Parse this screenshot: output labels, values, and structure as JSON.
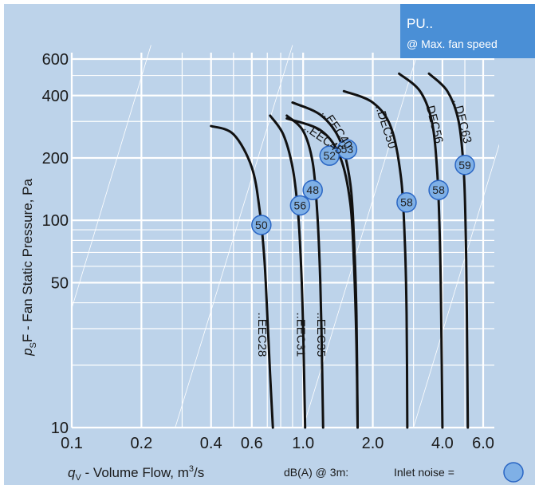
{
  "colors": {
    "background": "#bdd3ea",
    "grid": "#ffffff",
    "curve": "#111111",
    "badge_fill": "#7fb0e6",
    "badge_stroke": "#2a66c4",
    "box_fill": "#4a8fd6",
    "text": "#1a1a1a"
  },
  "info_box": {
    "title": "PU..",
    "subtitle": "@ Max. fan speed"
  },
  "chart_data": {
    "type": "line",
    "x_scale": "log",
    "y_scale": "log",
    "xlim": [
      0.1,
      6.0
    ],
    "ylim": [
      10,
      600
    ],
    "x_ticks": [
      0.1,
      0.2,
      0.4,
      0.6,
      1.0,
      2.0,
      4.0,
      6.0
    ],
    "x_tick_labels": [
      "0.1",
      "0.2",
      "0.4",
      "0.6",
      "1.0",
      "2.0",
      "4.0",
      "6.0"
    ],
    "y_ticks": [
      10,
      50,
      100,
      200,
      400,
      600
    ],
    "y_tick_labels": [
      "10",
      "50",
      "100",
      "200",
      "400",
      "600"
    ],
    "xlabel": {
      "main": "q",
      "sub": "V",
      "rest": " - Volume Flow, m",
      "sup": "3",
      "end": "/s"
    },
    "ylabel": {
      "main": "p",
      "sub": "S",
      "rest": "F - Fan Static Pressure, Pa"
    },
    "series": [
      {
        "name": "..EEC28",
        "points": [
          [
            0.4,
            285
          ],
          [
            0.5,
            260
          ],
          [
            0.6,
            180
          ],
          [
            0.65,
            110
          ],
          [
            0.68,
            65
          ],
          [
            0.7,
            35
          ],
          [
            0.72,
            18
          ],
          [
            0.74,
            10
          ]
        ]
      },
      {
        "name": "..EEC31",
        "points": [
          [
            0.72,
            320
          ],
          [
            0.82,
            260
          ],
          [
            0.9,
            180
          ],
          [
            0.95,
            110
          ],
          [
            0.98,
            60
          ],
          [
            1.0,
            30
          ],
          [
            1.02,
            10
          ]
        ]
      },
      {
        "name": "..EEC35",
        "points": [
          [
            0.85,
            320
          ],
          [
            1.0,
            270
          ],
          [
            1.1,
            190
          ],
          [
            1.15,
            110
          ],
          [
            1.18,
            60
          ],
          [
            1.2,
            30
          ],
          [
            1.22,
            10
          ]
        ]
      },
      {
        "name": "..EEC40",
        "points": [
          [
            0.9,
            370
          ],
          [
            1.2,
            320
          ],
          [
            1.45,
            240
          ],
          [
            1.6,
            150
          ],
          [
            1.66,
            80
          ],
          [
            1.7,
            35
          ],
          [
            1.72,
            10
          ]
        ]
      },
      {
        "name": "..EEC45",
        "points": [
          [
            0.85,
            310
          ],
          [
            1.2,
            270
          ],
          [
            1.45,
            200
          ],
          [
            1.6,
            120
          ],
          [
            1.66,
            60
          ],
          [
            1.7,
            25
          ],
          [
            1.72,
            10
          ]
        ]
      },
      {
        "name": "..DEC50",
        "points": [
          [
            1.5,
            420
          ],
          [
            2.0,
            370
          ],
          [
            2.4,
            280
          ],
          [
            2.65,
            160
          ],
          [
            2.75,
            80
          ],
          [
            2.8,
            35
          ],
          [
            2.82,
            10
          ]
        ]
      },
      {
        "name": "..DEC56",
        "points": [
          [
            2.6,
            510
          ],
          [
            3.2,
            420
          ],
          [
            3.6,
            300
          ],
          [
            3.8,
            170
          ],
          [
            3.9,
            80
          ],
          [
            3.95,
            35
          ],
          [
            4.0,
            10
          ]
        ]
      },
      {
        "name": "..DEC63",
        "points": [
          [
            3.5,
            510
          ],
          [
            4.2,
            420
          ],
          [
            4.7,
            300
          ],
          [
            4.95,
            170
          ],
          [
            5.05,
            80
          ],
          [
            5.1,
            35
          ],
          [
            5.15,
            10
          ]
        ]
      }
    ],
    "noise_markers": [
      {
        "value": "50",
        "x": 0.66,
        "y": 95
      },
      {
        "value": "56",
        "x": 0.97,
        "y": 118
      },
      {
        "value": "48",
        "x": 1.1,
        "y": 140
      },
      {
        "value": "52",
        "x": 1.3,
        "y": 205
      },
      {
        "value": "53",
        "x": 1.55,
        "y": 220
      },
      {
        "value": "58",
        "x": 2.8,
        "y": 122
      },
      {
        "value": "58",
        "x": 3.85,
        "y": 140
      },
      {
        "value": "59",
        "x": 5.0,
        "y": 185
      }
    ],
    "curve_labels": [
      {
        "text": "..EEC28",
        "x": 0.64,
        "y": 36,
        "rotate": 90
      },
      {
        "text": "..EEC31",
        "x": 0.94,
        "y": 36,
        "rotate": 90
      },
      {
        "text": "..EEC35",
        "x": 1.15,
        "y": 36,
        "rotate": 90
      },
      {
        "text": "..EEC40",
        "x": 1.2,
        "y": 330,
        "rotate": 56
      },
      {
        "text": "..EEC45",
        "x": 1.0,
        "y": 275,
        "rotate": 35
      },
      {
        "text": "..DEC50",
        "x": 2.05,
        "y": 355,
        "rotate": 72
      },
      {
        "text": "..DEC56",
        "x": 3.35,
        "y": 380,
        "rotate": 76
      },
      {
        "text": "..DEC63",
        "x": 4.45,
        "y": 380,
        "rotate": 76
      }
    ],
    "grid": true
  },
  "legend_note": {
    "db_text": "dB(A) @ 3m:",
    "inlet_text": "Inlet noise ="
  }
}
